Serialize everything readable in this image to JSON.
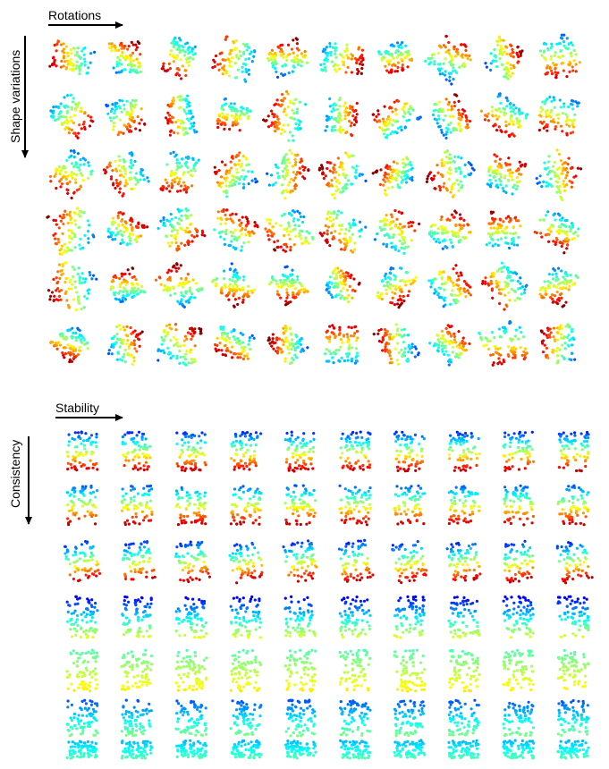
{
  "top_panel": {
    "x_label": "Rotations",
    "y_label": "Shape variations"
  },
  "bottom_panel": {
    "x_label": "Stability",
    "y_label": "Consistency"
  }
}
